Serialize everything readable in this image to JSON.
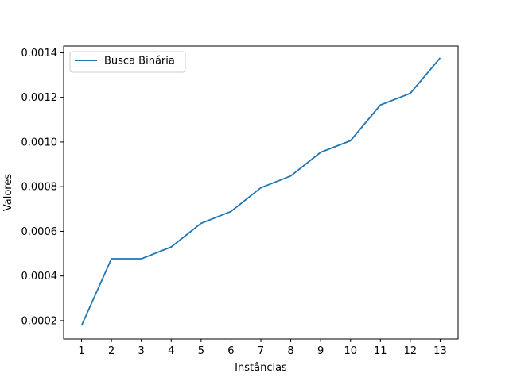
{
  "chart_data": {
    "type": "line",
    "title": "",
    "xlabel": "Instâncias",
    "ylabel": "Valores",
    "x": [
      1,
      2,
      3,
      4,
      5,
      6,
      7,
      8,
      9,
      10,
      11,
      12,
      13
    ],
    "x_tick_labels": [
      "1",
      "2",
      "3",
      "4",
      "5",
      "6",
      "7",
      "8",
      "9",
      "10",
      "11",
      "12",
      "13"
    ],
    "y_ticks": [
      0.0002,
      0.0004,
      0.0006,
      0.0008,
      0.001,
      0.0012,
      0.0014
    ],
    "y_tick_labels": [
      "0.0002",
      "0.0004",
      "0.0006",
      "0.0008",
      "0.0010",
      "0.0012",
      "0.0014"
    ],
    "xlim": [
      0.4,
      13.6
    ],
    "ylim": [
      0.000118,
      0.00143
    ],
    "series": [
      {
        "name": "Busca Binária",
        "color": "#1f77b4",
        "values": [
          0.000178,
          0.000477,
          0.000477,
          0.00053,
          0.000636,
          0.000689,
          0.000795,
          0.000848,
          0.000954,
          0.001006,
          0.001166,
          0.001218,
          0.001377
        ]
      }
    ],
    "legend": "top-left",
    "grid": false
  }
}
